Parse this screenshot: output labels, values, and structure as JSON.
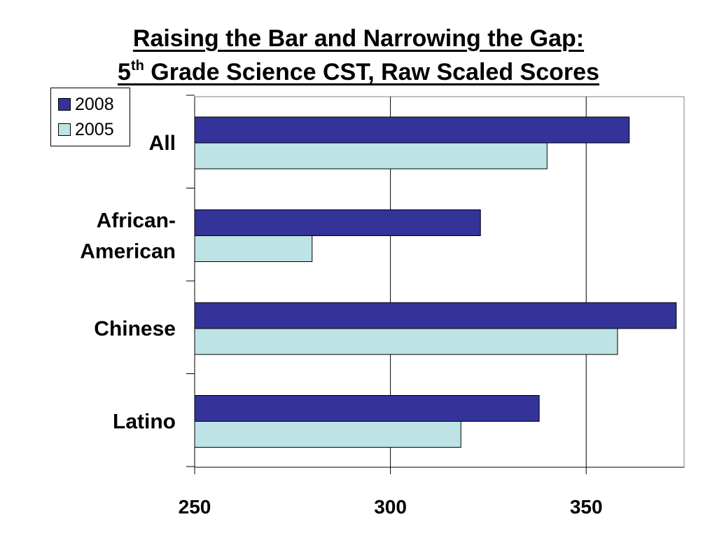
{
  "title": {
    "line1": "Raising the Bar and Narrowing the Gap:",
    "line2_prefix": "5",
    "line2_sup": "th",
    "line2_rest": " Grade Science CST, Raw Scaled Scores"
  },
  "legend": {
    "placement": "top-left",
    "items": [
      {
        "label": "2008",
        "color": "#333399"
      },
      {
        "label": "2005",
        "color": "#bde3e4"
      }
    ]
  },
  "chart_data": {
    "type": "bar",
    "orientation": "horizontal",
    "categories": [
      "All",
      "African-American",
      "Chinese",
      "Latino"
    ],
    "category_lines": [
      [
        "All"
      ],
      [
        "African-",
        "American"
      ],
      [
        "Chinese"
      ],
      [
        "Latino"
      ]
    ],
    "series": [
      {
        "name": "2008",
        "color": "#333399",
        "values": [
          361,
          323,
          373,
          338
        ]
      },
      {
        "name": "2005",
        "color": "#bde3e4",
        "values": [
          340,
          280,
          358,
          318
        ]
      }
    ],
    "xlim": [
      250,
      375
    ],
    "xticks": [
      250,
      300,
      350
    ],
    "xtick_labels": [
      "250",
      "300",
      "350"
    ],
    "grid": true,
    "xlabel": "",
    "ylabel": ""
  }
}
